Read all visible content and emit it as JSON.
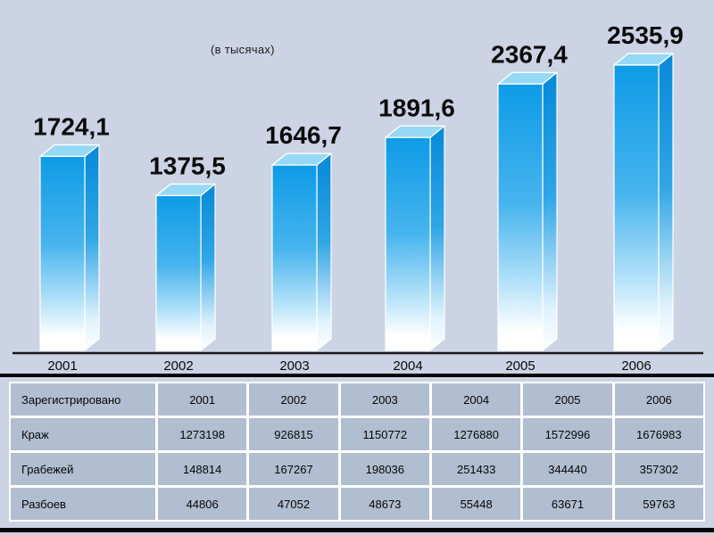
{
  "chart_data": {
    "type": "bar",
    "note": "(в тысячах)",
    "categories": [
      "2001",
      "2002",
      "2003",
      "2004",
      "2005",
      "2006"
    ],
    "values": [
      1724.1,
      1375.5,
      1646.7,
      1891.6,
      2367.4,
      2535.9
    ],
    "value_labels": [
      "1724,1",
      "1375,5",
      "1646,7",
      "1891,6",
      "2367,4",
      "2535,9"
    ],
    "ylim": [
      0,
      2535.9
    ],
    "legend": "none",
    "grid": "off",
    "colors": {
      "bar_front_top": "#0d9be6",
      "bar_front_mid": "#47b4ee",
      "bar_front_light": "#b5e2f9",
      "bar_front_bottom": "#ffffff",
      "bar_side_top": "#0689d8",
      "bar_side_mid": "#2fa6e6",
      "bar_side_bottom": "#dff2fc",
      "bar_top_face": "#96d9f7",
      "edge": "#ffffff",
      "axis": "#1a1a1a",
      "background": "#cbd3e4",
      "table_cell": "#b1bdd0"
    }
  },
  "table": {
    "header": [
      "Зарегистрировано",
      "2001",
      "2002",
      "2003",
      "2004",
      "2005",
      "2006"
    ],
    "rows": [
      [
        "Краж",
        "1273198",
        "926815",
        "1150772",
        "1276880",
        "1572996",
        "1676983"
      ],
      [
        "Грабежей",
        "148814",
        "167267",
        "198036",
        "251433",
        "344440",
        "357302"
      ],
      [
        "Разбоев",
        "44806",
        "47052",
        "48673",
        "55448",
        "63671",
        "59763"
      ]
    ]
  }
}
